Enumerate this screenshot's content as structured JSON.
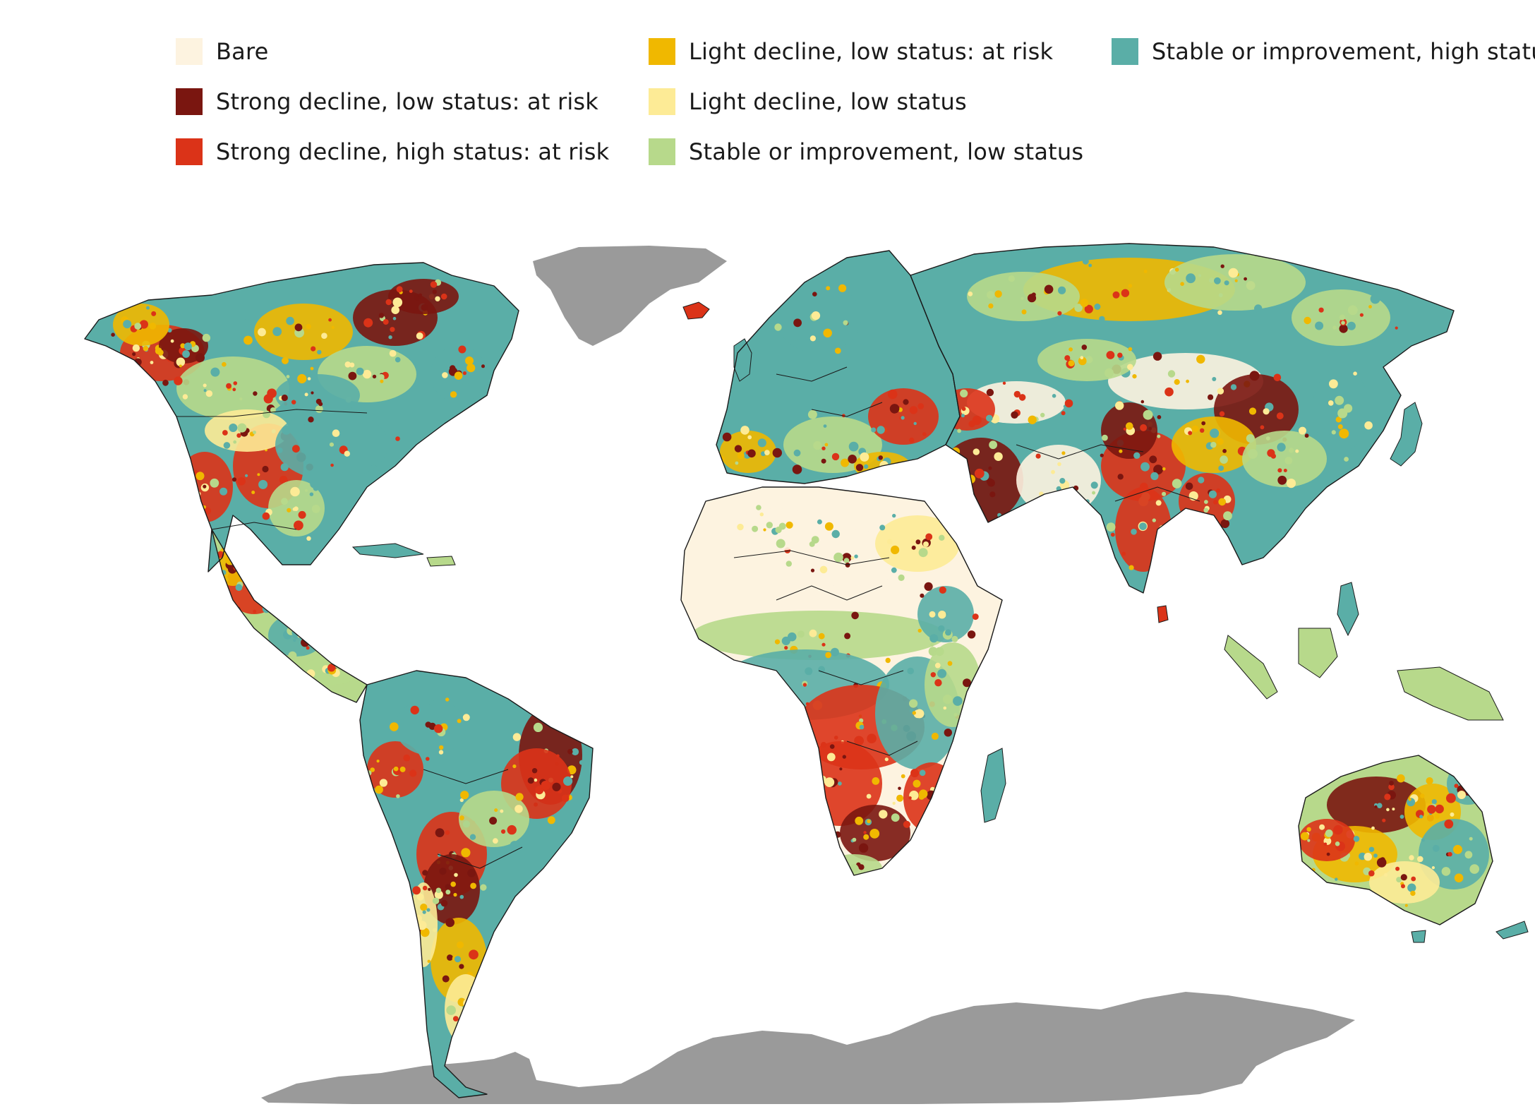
{
  "legend": {
    "items": [
      {
        "label": "Bare",
        "color": "#fdf3e0"
      },
      {
        "label": "Strong decline, low status: at risk",
        "color": "#7a1610"
      },
      {
        "label": "Strong decline, high status: at risk",
        "color": "#db3318"
      },
      {
        "label": "Light decline, low status: at risk",
        "color": "#f0b800"
      },
      {
        "label": "Light decline, low status",
        "color": "#fdeb96"
      },
      {
        "label": "Stable or improvement, low status",
        "color": "#b7d98b"
      },
      {
        "label": "Stable or improvement, high status",
        "color": "#5aaea7"
      }
    ]
  },
  "map": {
    "no_data_color": "#9a9a9a",
    "border_color": "#1a1a1a"
  }
}
